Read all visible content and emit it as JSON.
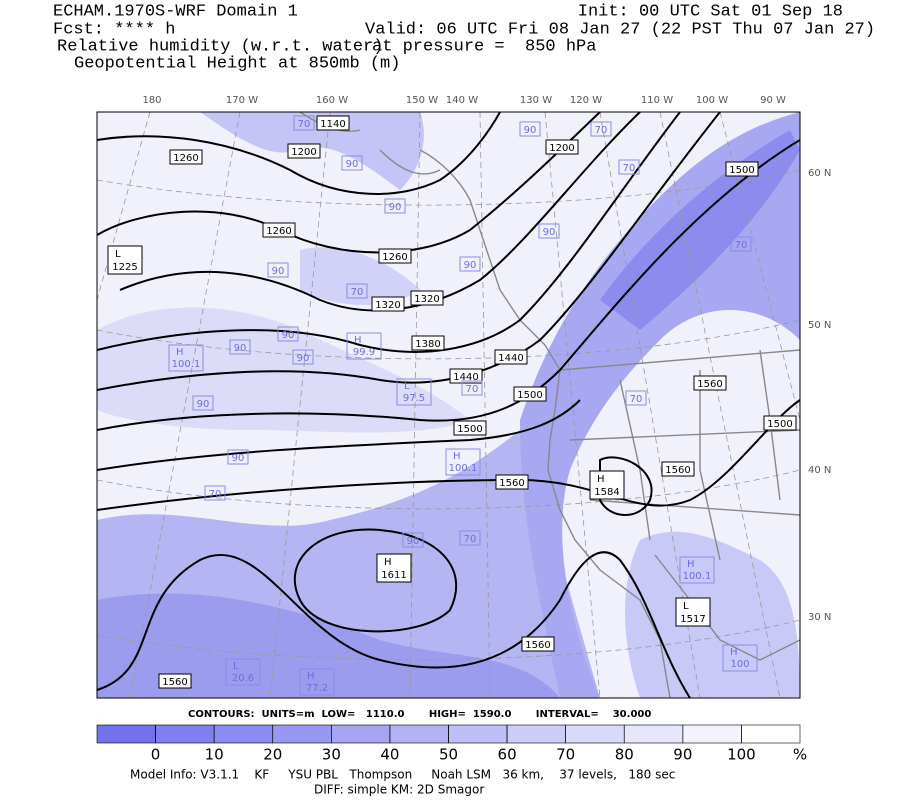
{
  "header": {
    "left": [
      "ECHAM.1970S-WRF Domain 1",
      "Fcst: **** h",
      "Relative humidity (w.r.t. water)",
      "Geopotential Height at 850mb (m)"
    ],
    "right": [
      "Init: 00 UTC Sat 01 Sep 18",
      "Valid: 06 UTC Fri 08 Jan 27 (22 PST Thu 07 Jan 27)",
      "at pressure =  850 hPa"
    ]
  },
  "map": {
    "lon_labels": [
      "180",
      "170 W",
      "160 W",
      "150 W",
      "140 W",
      "130 W",
      "120 W",
      "110 W",
      "100 W",
      "90 W"
    ],
    "lat_labels": [
      "60 N",
      "50 N",
      "40 N",
      "30 N"
    ],
    "height_labels": [
      "1140",
      "1200",
      "1260",
      "1200",
      "1500",
      "1260",
      "1260",
      "1320",
      "1320",
      "1380",
      "1440",
      "1440",
      "1500",
      "1500",
      "1560",
      "1560",
      "1560",
      "1500",
      "1560",
      "1560"
    ],
    "centers": [
      {
        "type": "L",
        "value": "1225"
      },
      {
        "type": "H",
        "value": "1584"
      },
      {
        "type": "H",
        "value": "1611"
      },
      {
        "type": "L",
        "value": "1517"
      }
    ],
    "rh_labels": [
      "70",
      "90",
      "90",
      "70",
      "90",
      "70",
      "90",
      "90",
      "90",
      "70",
      "90",
      "90",
      "90",
      "70",
      "70",
      "90",
      "70",
      "90",
      "70",
      "70",
      "90"
    ],
    "rh_centers": [
      {
        "type": "H",
        "value": "100.1"
      },
      {
        "type": "H",
        "value": "99.9"
      },
      {
        "type": "L",
        "value": "97.5"
      },
      {
        "type": "H",
        "value": "100.1"
      },
      {
        "type": "H",
        "value": "100.1"
      },
      {
        "type": "L",
        "value": "20.6"
      },
      {
        "type": "H",
        "value": "77.2"
      },
      {
        "type": "H",
        "value": "100"
      }
    ]
  },
  "contour_info": "CONTOURS:  UNITS=m  LOW=   1110.0       HIGH=  1590.0       INTERVAL=    30.000",
  "colorbar": {
    "ticks": [
      0,
      10,
      20,
      30,
      40,
      50,
      60,
      70,
      80,
      90,
      100
    ],
    "unit": "%",
    "colors": [
      "#7272ee",
      "#7f7ff0",
      "#8b8bf1",
      "#9898f3",
      "#a5a5f4",
      "#b2b2f6",
      "#bfbff7",
      "#ccccf9",
      "#d9d9fa",
      "#e6e6fc",
      "#f3f3fd",
      "#ffffff"
    ]
  },
  "footer": [
    "Model Info: V3.1.1    KF     YSU PBL   Thompson     Noah LSM   36 km,    37 levels,   180 sec",
    "DIFF: simple KM: 2D Smagor"
  ]
}
